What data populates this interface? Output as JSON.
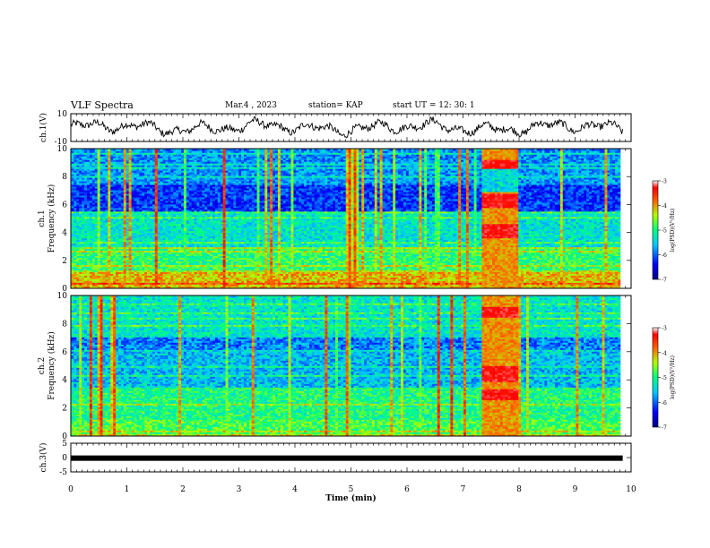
{
  "header": {
    "title": "VLF Spectra",
    "date": "Mar.4  , 2023",
    "station": "station= KAP",
    "start": "start  UT  =   12: 30: 1"
  },
  "chart_data": [
    {
      "type": "line",
      "ylabel": "ch.1(V)",
      "ylim": [
        -10,
        10
      ],
      "yticks": [
        "10",
        "-10"
      ],
      "xlim": [
        0,
        10
      ],
      "description_series": "ch.1 waveform (noisy, roughly -4 to 6 V)"
    },
    {
      "type": "heatmap",
      "ylabel": "ch.1\nFrequency  (kHz)",
      "ylabel_top": "ch.1",
      "ylabel_bottom": "Frequency  (kHz)",
      "ylim": [
        0,
        10
      ],
      "yticks": [
        "0",
        "2",
        "4",
        "6",
        "8",
        "10"
      ],
      "xlim": [
        0,
        10
      ],
      "burst_interval_min": [
        7.35,
        8.0
      ],
      "colorbar": {
        "label": "log(PSD)(V²/Hz)",
        "range": [
          -7,
          -3
        ],
        "ticks": [
          "-3",
          "-4",
          "-5",
          "-6",
          "-7"
        ]
      }
    },
    {
      "type": "heatmap",
      "ylabel_top": "ch.2",
      "ylabel_bottom": "Frequency  (kHz)",
      "ylim": [
        0,
        10
      ],
      "yticks": [
        "0",
        "2",
        "4",
        "6",
        "8",
        "10"
      ],
      "xlim": [
        0,
        10
      ],
      "burst_interval_min": [
        7.35,
        8.0
      ],
      "colorbar": {
        "label": "log(PSD)(V²/Hz)",
        "range": [
          -7,
          -3
        ],
        "ticks": [
          "-3",
          "-4",
          "-5",
          "-6",
          "-7"
        ]
      }
    },
    {
      "type": "line",
      "ylabel": "ch.3(V)",
      "ylim": [
        -5,
        5
      ],
      "yticks": [
        "5",
        "0",
        "-5"
      ],
      "xlim": [
        0,
        10
      ],
      "xlabel": "Time  (min)",
      "xticks": [
        "0",
        "1",
        "2",
        "3",
        "4",
        "5",
        "6",
        "7",
        "8",
        "9",
        "10"
      ],
      "constant_value": -0.2
    }
  ],
  "colors": {
    "axis": "#000000",
    "trace": "#000000"
  }
}
